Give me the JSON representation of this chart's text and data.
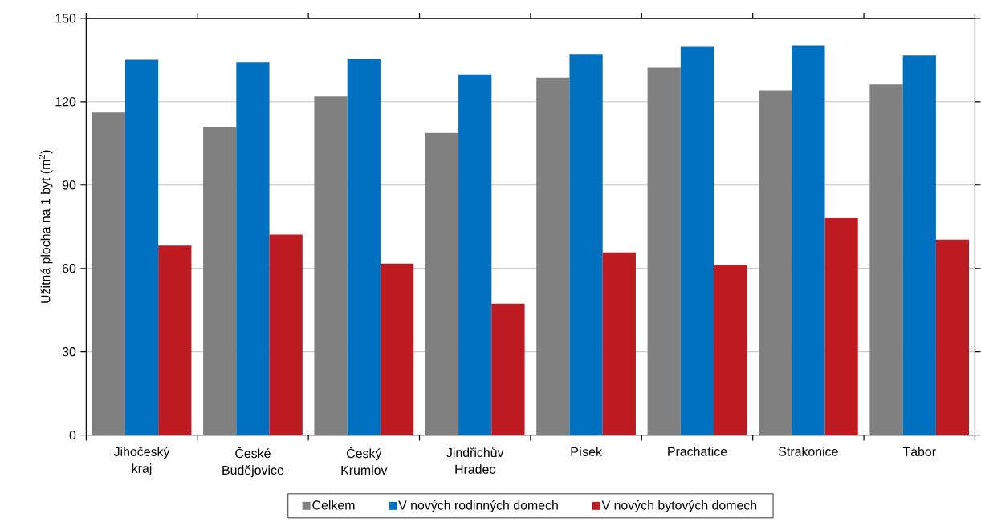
{
  "chart_data": {
    "type": "bar",
    "ylabel": "Užitná plocha na 1 byt (m$^{2}$)",
    "categories": [
      "Jihočeský kraj",
      "České Budějovice",
      "Český Krumlov",
      "Jindřichův Hradec",
      "Písek",
      "Prachatice",
      "Strakonice",
      "Tábor"
    ],
    "series": [
      {
        "name": "Celkem",
        "color": "#808080",
        "values": [
          116.1,
          110.7,
          121.9,
          108.8,
          128.7,
          132.2,
          124.1,
          126.2
        ]
      },
      {
        "name": "V nových rodinných domech",
        "color": "#0070c0",
        "values": [
          135.1,
          134.3,
          135.4,
          129.8,
          137.2,
          140.0,
          140.3,
          136.6
        ]
      },
      {
        "name": "V nových bytových domech",
        "color": "#be1a21",
        "values": [
          68.2,
          72.2,
          61.7,
          47.3,
          65.8,
          61.4,
          78.1,
          70.4
        ]
      }
    ],
    "ylim": [
      0,
      150
    ],
    "yticks": [
      0,
      30,
      60,
      90,
      120,
      150
    ],
    "grid": "y",
    "legend": "bottom"
  }
}
